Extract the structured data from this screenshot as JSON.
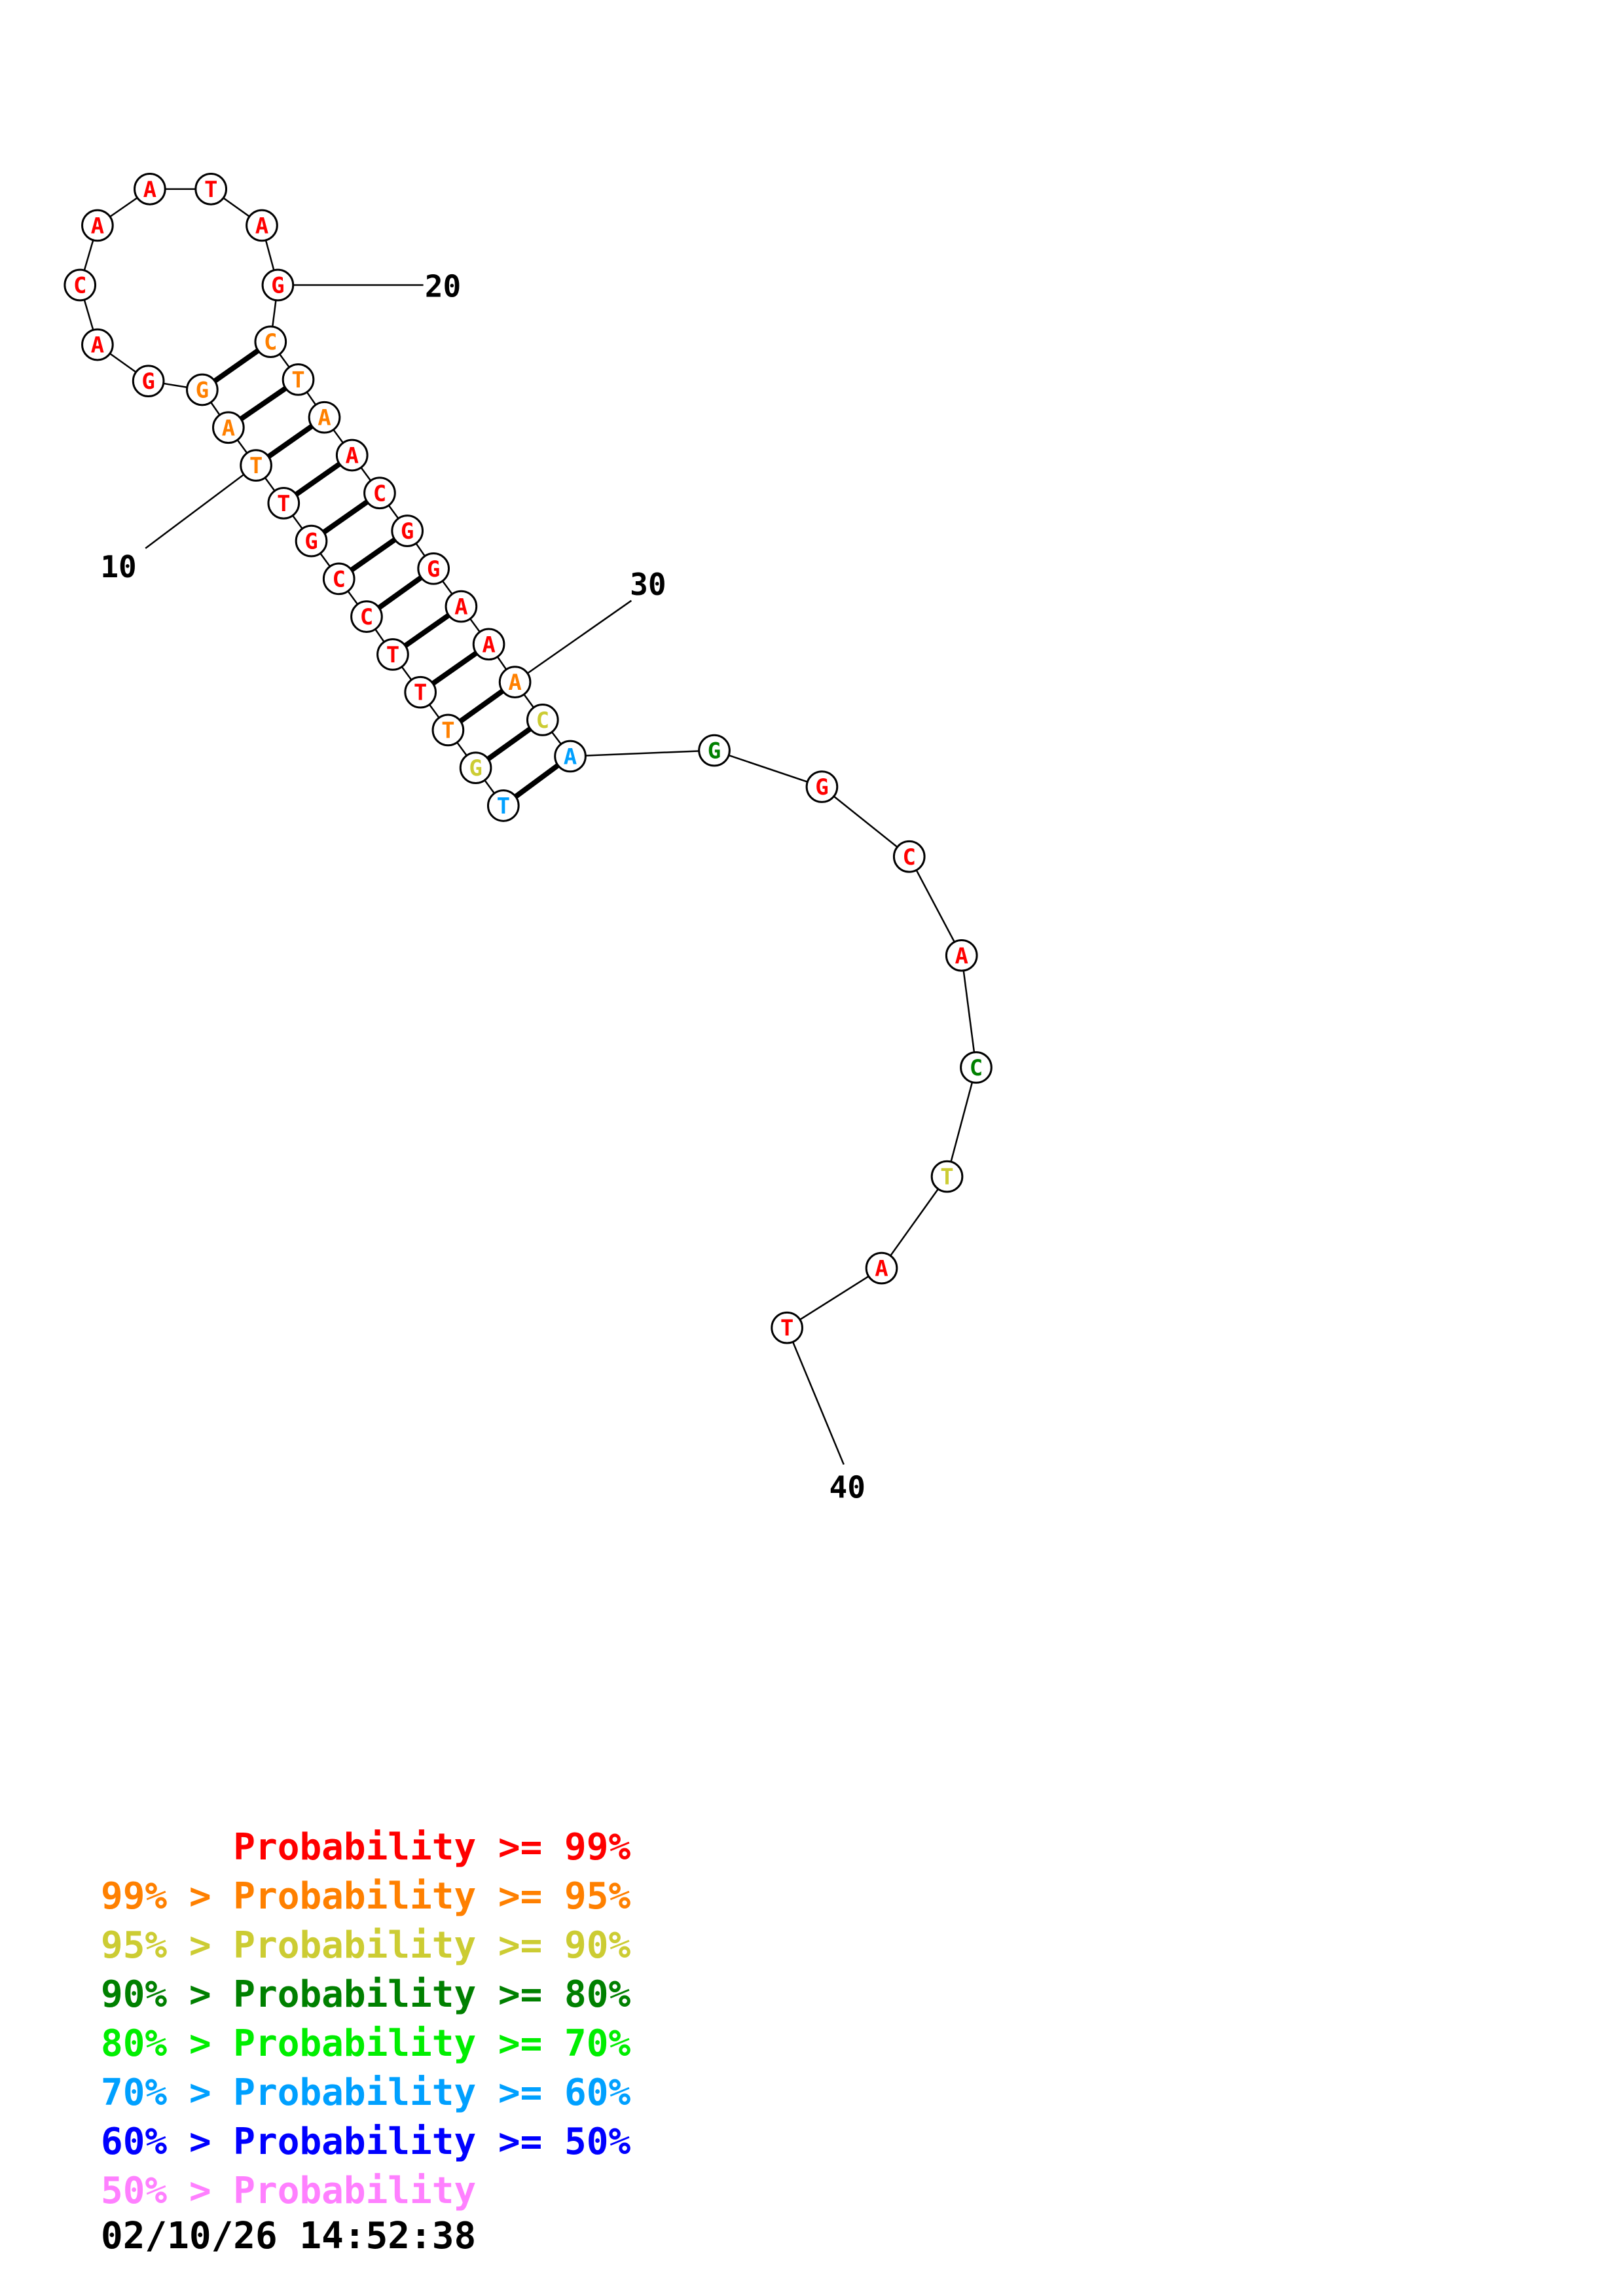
{
  "colors": {
    "red": "#ff0000",
    "orange": "#ff8000",
    "yellow": "#cccc33",
    "dark_green": "#008000",
    "green": "#00ee00",
    "sky_blue": "#00a0ff",
    "blue": "#0000ff",
    "pink": "#ff80ff"
  },
  "structure": {
    "nucleotides": [
      {
        "n": 1,
        "base": "T",
        "color": "sky_blue"
      },
      {
        "n": 2,
        "base": "G",
        "color": "yellow"
      },
      {
        "n": 3,
        "base": "T",
        "color": "orange"
      },
      {
        "n": 4,
        "base": "T",
        "color": "red"
      },
      {
        "n": 5,
        "base": "T",
        "color": "red"
      },
      {
        "n": 6,
        "base": "C",
        "color": "red"
      },
      {
        "n": 7,
        "base": "C",
        "color": "red"
      },
      {
        "n": 8,
        "base": "G",
        "color": "red"
      },
      {
        "n": 9,
        "base": "T",
        "color": "red"
      },
      {
        "n": 10,
        "base": "T",
        "color": "orange"
      },
      {
        "n": 11,
        "base": "A",
        "color": "orange"
      },
      {
        "n": 12,
        "base": "G",
        "color": "orange"
      },
      {
        "n": 13,
        "base": "G",
        "color": "red"
      },
      {
        "n": 14,
        "base": "A",
        "color": "red"
      },
      {
        "n": 15,
        "base": "C",
        "color": "red"
      },
      {
        "n": 16,
        "base": "A",
        "color": "red"
      },
      {
        "n": 17,
        "base": "A",
        "color": "red"
      },
      {
        "n": 18,
        "base": "T",
        "color": "red"
      },
      {
        "n": 19,
        "base": "A",
        "color": "red"
      },
      {
        "n": 20,
        "base": "G",
        "color": "red"
      },
      {
        "n": 21,
        "base": "C",
        "color": "orange"
      },
      {
        "n": 22,
        "base": "T",
        "color": "orange"
      },
      {
        "n": 23,
        "base": "A",
        "color": "orange"
      },
      {
        "n": 24,
        "base": "A",
        "color": "red"
      },
      {
        "n": 25,
        "base": "C",
        "color": "red"
      },
      {
        "n": 26,
        "base": "G",
        "color": "red"
      },
      {
        "n": 27,
        "base": "G",
        "color": "red"
      },
      {
        "n": 28,
        "base": "A",
        "color": "red"
      },
      {
        "n": 29,
        "base": "A",
        "color": "red"
      },
      {
        "n": 30,
        "base": "A",
        "color": "orange"
      },
      {
        "n": 31,
        "base": "C",
        "color": "yellow"
      },
      {
        "n": 32,
        "base": "A",
        "color": "sky_blue"
      },
      {
        "n": 33,
        "base": "G",
        "color": "dark_green"
      },
      {
        "n": 34,
        "base": "G",
        "color": "red"
      },
      {
        "n": 35,
        "base": "C",
        "color": "red"
      },
      {
        "n": 36,
        "base": "A",
        "color": "red"
      },
      {
        "n": 37,
        "base": "C",
        "color": "dark_green"
      },
      {
        "n": 38,
        "base": "T",
        "color": "yellow"
      },
      {
        "n": 39,
        "base": "A",
        "color": "red"
      },
      {
        "n": 40,
        "base": "T",
        "color": "red"
      }
    ],
    "pairs": [
      [
        1,
        32
      ],
      [
        2,
        31
      ],
      [
        3,
        30
      ],
      [
        4,
        29
      ],
      [
        5,
        28
      ],
      [
        6,
        27
      ],
      [
        7,
        26
      ],
      [
        8,
        25
      ],
      [
        9,
        24
      ],
      [
        10,
        23
      ],
      [
        11,
        22
      ],
      [
        12,
        21
      ]
    ],
    "position_labels": [
      {
        "n": 10,
        "text": "10"
      },
      {
        "n": 20,
        "text": "20"
      },
      {
        "n": 30,
        "text": "30"
      },
      {
        "n": 40,
        "text": "40"
      }
    ]
  },
  "legend": [
    {
      "prefix": "",
      "label": "Probability",
      "suffix": " >= 99%",
      "color": "red"
    },
    {
      "prefix": "99% > ",
      "label": "Probability",
      "suffix": " >= 95%",
      "color": "orange"
    },
    {
      "prefix": "95% > ",
      "label": "Probability",
      "suffix": " >= 90%",
      "color": "yellow"
    },
    {
      "prefix": "90% > ",
      "label": "Probability",
      "suffix": " >= 80%",
      "color": "dark_green"
    },
    {
      "prefix": "80% > ",
      "label": "Probability",
      "suffix": " >= 70%",
      "color": "green"
    },
    {
      "prefix": "70% > ",
      "label": "Probability",
      "suffix": " >= 60%",
      "color": "sky_blue"
    },
    {
      "prefix": "60% > ",
      "label": "Probability",
      "suffix": " >= 50%",
      "color": "blue"
    },
    {
      "prefix": "50% > ",
      "label": "Probability",
      "suffix": "",
      "color": "pink"
    }
  ],
  "timestamp": "02/10/26 14:52:38"
}
